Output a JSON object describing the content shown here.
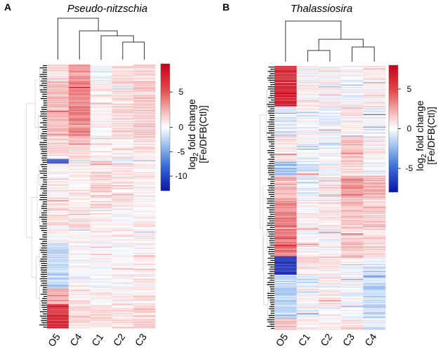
{
  "chart_data": [
    {
      "type": "heatmap",
      "panel": "A",
      "title": "Pseudo-nitzschia",
      "columns": [
        "O5",
        "C4",
        "C1",
        "C2",
        "C3"
      ],
      "colorbar": {
        "label_main": "log",
        "label_sub": "2",
        "label_rest": " fold change",
        "label_line2": "[Fe/DFB(Ctl)]",
        "ticks": [
          5,
          0,
          -5,
          -10
        ],
        "range": [
          -13,
          9
        ]
      },
      "row_count": 330,
      "blocks": [
        {
          "rows": 20,
          "values": [
            1.5,
            3.5,
            -0.5,
            1.0,
            1.5
          ]
        },
        {
          "rows": 70,
          "values": [
            2.5,
            4.5,
            0.5,
            1.5,
            2.0
          ]
        },
        {
          "rows": 28,
          "values": [
            1.5,
            2.0,
            0.5,
            0.5,
            1.0
          ]
        },
        {
          "rows": 6,
          "values": [
            -9.0,
            1.0,
            0.0,
            -1.0,
            0.5
          ]
        },
        {
          "rows": 56,
          "values": [
            0.5,
            0.5,
            1.5,
            1.0,
            0.5
          ]
        },
        {
          "rows": 24,
          "values": [
            1.0,
            1.5,
            0.5,
            0.0,
            0.5
          ]
        },
        {
          "rows": 20,
          "values": [
            0.0,
            0.5,
            0.5,
            0.5,
            0.5
          ]
        },
        {
          "rows": 56,
          "values": [
            -2.5,
            0.0,
            -0.5,
            0.0,
            0.5
          ]
        },
        {
          "rows": 20,
          "values": [
            3.0,
            1.0,
            0.5,
            0.5,
            1.0
          ]
        },
        {
          "rows": 30,
          "values": [
            7.0,
            1.5,
            1.0,
            1.0,
            1.5
          ]
        }
      ]
    },
    {
      "type": "heatmap",
      "panel": "B",
      "title": "Thalassiosira",
      "columns": [
        "O5",
        "C1",
        "C2",
        "C3",
        "C4"
      ],
      "colorbar": {
        "label_main": "log",
        "label_sub": "2",
        "label_rest": " fold change",
        "label_line2": "[Fe/DFB(Ctl)]",
        "ticks": [
          5,
          0,
          -5
        ],
        "range": [
          -8,
          8
        ]
      },
      "row_count": 360,
      "blocks": [
        {
          "rows": 55,
          "values": [
            6.5,
            0.5,
            0.5,
            0.0,
            0.5
          ]
        },
        {
          "rows": 40,
          "values": [
            -0.5,
            0.0,
            0.0,
            0.5,
            -0.5
          ]
        },
        {
          "rows": 35,
          "values": [
            1.0,
            0.0,
            -0.5,
            2.0,
            0.5
          ]
        },
        {
          "rows": 20,
          "values": [
            -2.0,
            -0.5,
            0.0,
            1.0,
            0.0
          ]
        },
        {
          "rows": 30,
          "values": [
            2.5,
            -0.5,
            1.0,
            3.5,
            2.5
          ]
        },
        {
          "rows": 80,
          "values": [
            4.0,
            0.5,
            0.5,
            2.0,
            1.5
          ]
        },
        {
          "rows": 25,
          "values": [
            -6.5,
            1.0,
            0.5,
            0.0,
            -0.5
          ]
        },
        {
          "rows": 60,
          "values": [
            -1.5,
            0.0,
            0.5,
            0.0,
            -1.5
          ]
        },
        {
          "rows": 15,
          "values": [
            2.0,
            0.5,
            0.5,
            1.0,
            -0.5
          ]
        }
      ]
    }
  ],
  "labels": {
    "panel_a": "A",
    "panel_b": "B"
  }
}
